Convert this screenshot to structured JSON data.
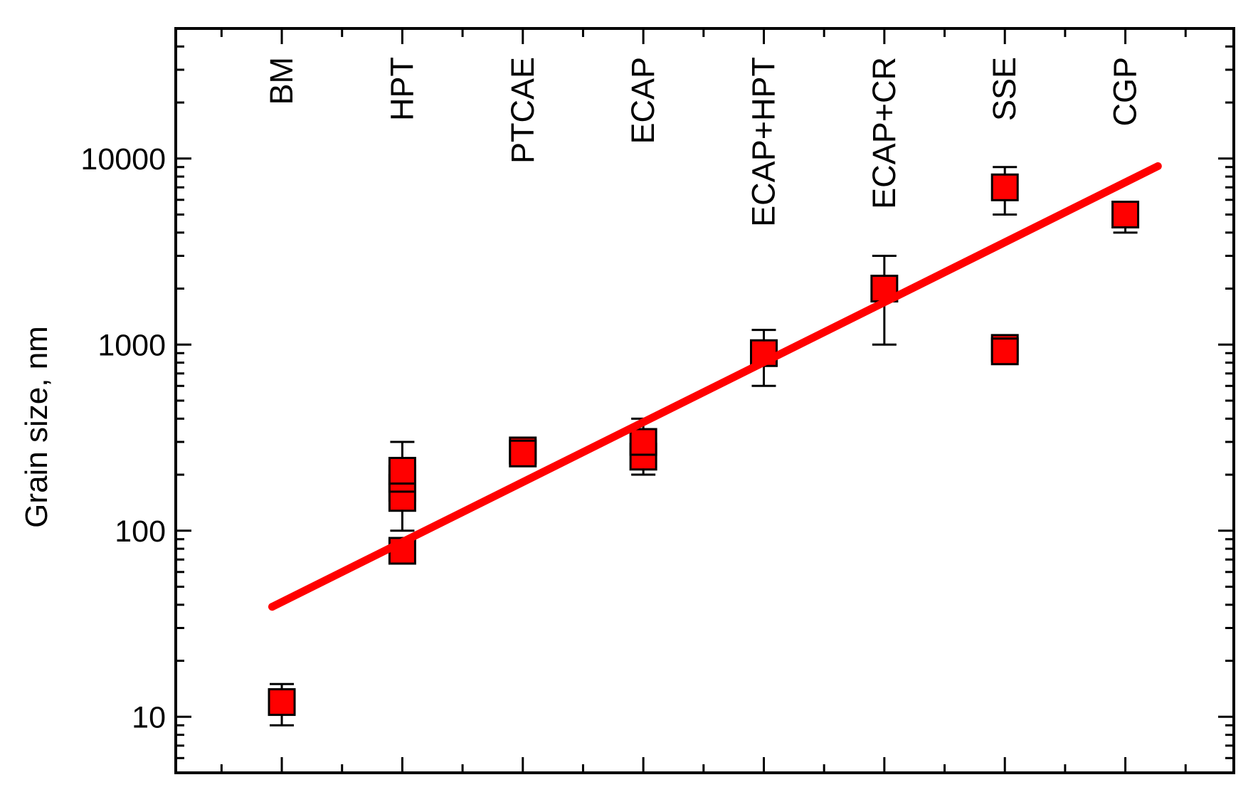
{
  "chart_data": {
    "type": "scatter",
    "y_label": "Grain size, nm",
    "categories": [
      "BM",
      "HPT",
      "PTCAE",
      "ECAP",
      "ECAP+HPT",
      "ECAP+CR",
      "SSE",
      "CGP"
    ],
    "xlim": [
      -0.88,
      7.9
    ],
    "ylim": [
      5,
      50000
    ],
    "yscale": "log",
    "yticks": [
      10,
      100,
      1000,
      10000
    ],
    "minor_ticks": true,
    "color": "#ff0000",
    "points": [
      {
        "x": 0,
        "value": 12,
        "err": [
          9,
          15
        ]
      },
      {
        "x": 1,
        "value": 78
      },
      {
        "x": 1,
        "value": 170,
        "err": [
          100,
          300
        ]
      },
      {
        "x": 1,
        "value": 150
      },
      {
        "x": 1,
        "value": 190
      },
      {
        "x": 1,
        "value": 210
      },
      {
        "x": 2,
        "value": 270,
        "err": [
          245,
          290
        ]
      },
      {
        "x": 2,
        "value": 260
      },
      {
        "x": 3,
        "value": 250,
        "err": [
          200,
          400
        ]
      },
      {
        "x": 3,
        "value": 300
      },
      {
        "x": 4,
        "value": 900,
        "err": [
          600,
          1200
        ]
      },
      {
        "x": 5,
        "value": 2000,
        "err": [
          1000,
          3000
        ]
      },
      {
        "x": 6,
        "value": 7000,
        "err": [
          5000,
          9000
        ]
      },
      {
        "x": 6,
        "value": 960
      },
      {
        "x": 6,
        "value": 920
      },
      {
        "x": 7,
        "value": 5000,
        "err": [
          4000,
          5800
        ]
      }
    ],
    "fit": {
      "x": [
        -0.08,
        7.27
      ],
      "values": [
        39,
        9100
      ],
      "color": "#ff0000"
    }
  }
}
